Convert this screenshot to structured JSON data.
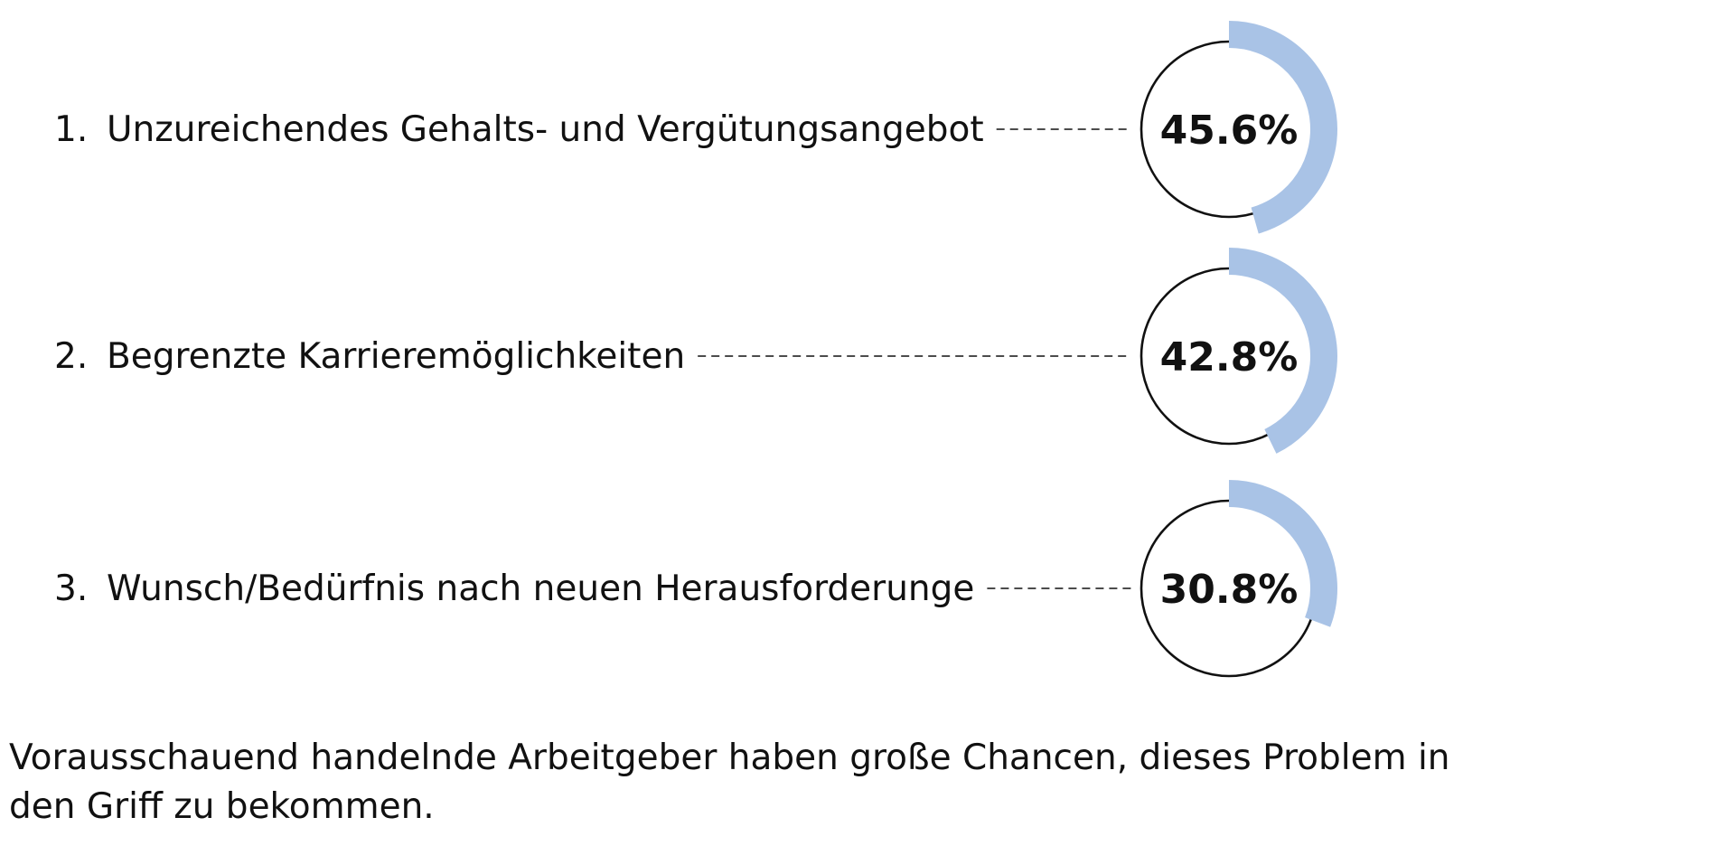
{
  "chart_data": {
    "type": "donut",
    "colors": {
      "accent": "#a9c3e6",
      "ring": "#111111",
      "text": "#111111"
    },
    "items": [
      {
        "rank": "1.",
        "label": "Unzureichendes Gehalts- und Vergütungsangebot",
        "value": 45.6,
        "value_label": "45.6%"
      },
      {
        "rank": "2.",
        "label": "Begrenzte Karrieremöglichkeiten",
        "value": 42.8,
        "value_label": "42.8%"
      },
      {
        "rank": "3.",
        "label": "Wunsch/Bedürfnis nach neuen Herausforderunge",
        "value": 30.8,
        "value_label": "30.8%"
      }
    ]
  },
  "footnote": "Vorausschauend handelnde Arbeitgeber haben große Chancen, dieses Problem in den Griff zu bekommen."
}
